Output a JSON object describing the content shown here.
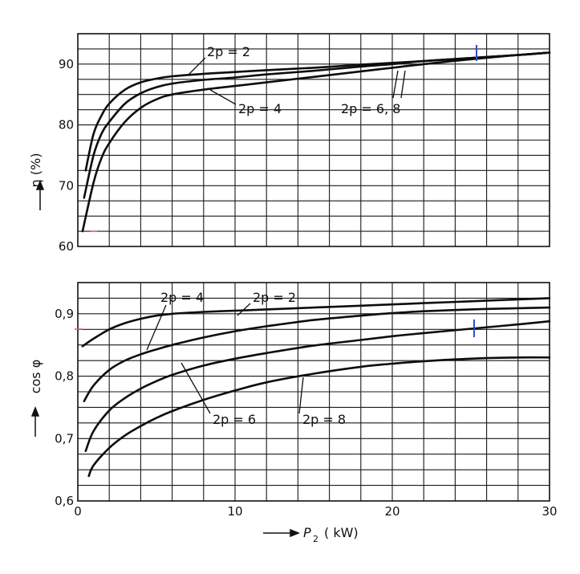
{
  "chart_data": [
    {
      "type": "line",
      "ylabel": "η (%)",
      "xlabel": "",
      "xlim": [
        0,
        30
      ],
      "ylim": [
        60,
        95
      ],
      "xticks": [],
      "yticks": [
        60,
        70,
        80,
        90
      ],
      "grid": true,
      "series": [
        {
          "name": "2p = 2",
          "x": [
            0.5,
            1,
            1.5,
            2,
            3,
            4,
            5,
            6,
            8,
            10,
            12,
            15,
            18,
            20,
            22,
            25,
            28,
            30
          ],
          "y": [
            72.5,
            78.5,
            81.5,
            83.5,
            85.8,
            87.0,
            87.6,
            88.0,
            88.4,
            88.7,
            89.0,
            89.4,
            89.9,
            90.2,
            90.5,
            91.0,
            91.5,
            91.9
          ]
        },
        {
          "name": "2p = 4",
          "x": [
            0.4,
            1,
            1.5,
            2,
            3,
            4,
            5,
            6,
            8,
            10,
            12,
            15,
            18,
            20,
            22,
            25,
            28,
            30
          ],
          "y": [
            68.0,
            75.0,
            78.5,
            80.5,
            83.5,
            85.2,
            86.2,
            86.8,
            87.4,
            87.8,
            88.3,
            88.9,
            89.6,
            90.0,
            90.5,
            91.0,
            91.5,
            91.9
          ]
        },
        {
          "name": "2p = 6, 8",
          "x": [
            0.3,
            1,
            1.5,
            2,
            3,
            4,
            5,
            6,
            8,
            10,
            12,
            15,
            18,
            20,
            22,
            25,
            28,
            30
          ],
          "y": [
            62.5,
            70.5,
            74.5,
            77.0,
            80.5,
            82.8,
            84.2,
            85.0,
            85.8,
            86.4,
            87.0,
            87.9,
            88.8,
            89.4,
            90.0,
            90.8,
            91.5,
            91.9
          ]
        }
      ],
      "annotations": [
        "2p = 2",
        "2p = 4",
        "2p = 6, 8"
      ]
    },
    {
      "type": "line",
      "ylabel": "cos φ",
      "xlabel": "P2 (kW)",
      "xlim": [
        0,
        30
      ],
      "ylim": [
        0.6,
        0.95
      ],
      "xticks": [
        0,
        10,
        20,
        30
      ],
      "yticks": [
        "0,6",
        "0,7",
        "0,8",
        "0,9"
      ],
      "grid": true,
      "series": [
        {
          "name": "2p = 2",
          "x": [
            0.3,
            1,
            2,
            3,
            4,
            5,
            6,
            8,
            10,
            12,
            15,
            18,
            20,
            22,
            25,
            28,
            30
          ],
          "y": [
            0.848,
            0.86,
            0.875,
            0.885,
            0.892,
            0.897,
            0.9,
            0.903,
            0.905,
            0.907,
            0.91,
            0.913,
            0.915,
            0.917,
            0.92,
            0.923,
            0.925
          ]
        },
        {
          "name": "2p = 4",
          "x": [
            0.4,
            1,
            2,
            3,
            4,
            5,
            6,
            8,
            10,
            12,
            15,
            18,
            20,
            22,
            25,
            28,
            30
          ],
          "y": [
            0.76,
            0.785,
            0.81,
            0.825,
            0.835,
            0.843,
            0.85,
            0.862,
            0.872,
            0.88,
            0.89,
            0.897,
            0.901,
            0.904,
            0.907,
            0.909,
            0.91
          ]
        },
        {
          "name": "2p = 6",
          "x": [
            0.5,
            1,
            2,
            3,
            4,
            5,
            6,
            8,
            10,
            12,
            15,
            18,
            20,
            22,
            25,
            28,
            30
          ],
          "y": [
            0.68,
            0.712,
            0.745,
            0.765,
            0.78,
            0.792,
            0.802,
            0.817,
            0.828,
            0.837,
            0.849,
            0.858,
            0.864,
            0.869,
            0.876,
            0.883,
            0.888
          ]
        },
        {
          "name": "2p = 8",
          "x": [
            0.7,
            1,
            2,
            3,
            4,
            5,
            6,
            8,
            10,
            12,
            15,
            18,
            20,
            22,
            25,
            28,
            30
          ],
          "y": [
            0.64,
            0.657,
            0.685,
            0.705,
            0.72,
            0.733,
            0.744,
            0.762,
            0.777,
            0.79,
            0.804,
            0.815,
            0.82,
            0.824,
            0.828,
            0.83,
            0.83
          ]
        }
      ],
      "annotations": [
        "2p = 4",
        "2p = 2",
        "2p = 6",
        "2p = 8"
      ]
    }
  ],
  "labels": {
    "top_ylabel": "η  (%)",
    "bottom_ylabel": "cos φ",
    "xlabel_main": "P",
    "xlabel_sub": "2",
    "xlabel_unit": "( kW)",
    "top_yticks": [
      "60",
      "70",
      "80",
      "90"
    ],
    "bottom_yticks": [
      "0,6",
      "0,7",
      "0,8",
      "0,9"
    ],
    "xticks": [
      "0",
      "10",
      "20",
      "30"
    ],
    "top_annot_2p2": "2p = 2",
    "top_annot_2p4": "2p = 4",
    "top_annot_2p68": "2p = 6, 8",
    "bot_annot_2p4": "2p = 4",
    "bot_annot_2p2": "2p = 2",
    "bot_annot_2p6": "2p = 6",
    "bot_annot_2p8": "2p = 8"
  }
}
